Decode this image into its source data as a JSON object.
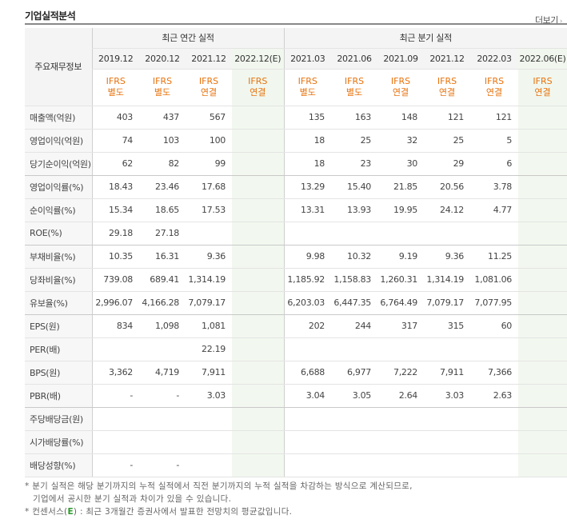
{
  "header": {
    "title": "기업실적분석",
    "more_label": "더보기"
  },
  "table": {
    "group_headers": {
      "annual": "최근 연간 실적",
      "quarterly": "최근 분기 실적"
    },
    "label_header": "주요재무정보",
    "annual_periods": [
      "2019.12",
      "2020.12",
      "2021.12",
      "2022.12(E)"
    ],
    "quarter_periods": [
      "2021.03",
      "2021.06",
      "2021.09",
      "2021.12",
      "2022.03",
      "2022.06(E)"
    ],
    "ifrs": [
      [
        "IFRS",
        "별도"
      ],
      [
        "IFRS",
        "별도"
      ],
      [
        "IFRS",
        "연결"
      ],
      [
        "IFRS",
        "연결"
      ],
      [
        "IFRS",
        "별도"
      ],
      [
        "IFRS",
        "별도"
      ],
      [
        "IFRS",
        "연결"
      ],
      [
        "IFRS",
        "연결"
      ],
      [
        "IFRS",
        "연결"
      ],
      [
        "IFRS",
        "연결"
      ]
    ],
    "rows": [
      {
        "label": "매출액(억원)",
        "values": [
          "403",
          "437",
          "567",
          "",
          "135",
          "163",
          "148",
          "121",
          "121",
          ""
        ]
      },
      {
        "label": "영업이익(억원)",
        "values": [
          "74",
          "103",
          "100",
          "",
          "18",
          "25",
          "32",
          "25",
          "5",
          ""
        ]
      },
      {
        "label": "당기순이익(억원)",
        "values": [
          "62",
          "82",
          "99",
          "",
          "18",
          "23",
          "30",
          "29",
          "6",
          ""
        ]
      },
      {
        "label": "영업이익률(%)",
        "values": [
          "18.43",
          "23.46",
          "17.68",
          "",
          "13.29",
          "15.40",
          "21.85",
          "20.56",
          "3.78",
          ""
        ]
      },
      {
        "label": "순이익률(%)",
        "values": [
          "15.34",
          "18.65",
          "17.53",
          "",
          "13.31",
          "13.93",
          "19.95",
          "24.12",
          "4.77",
          ""
        ]
      },
      {
        "label": "ROE(%)",
        "values": [
          "29.18",
          "27.18",
          "",
          "",
          "",
          "",
          "",
          "",
          "",
          ""
        ]
      },
      {
        "label": "부채비율(%)",
        "values": [
          "10.35",
          "16.31",
          "9.36",
          "",
          "9.98",
          "10.32",
          "9.19",
          "9.36",
          "11.25",
          ""
        ]
      },
      {
        "label": "당좌비율(%)",
        "values": [
          "739.08",
          "689.41",
          "1,314.19",
          "",
          "1,185.92",
          "1,158.83",
          "1,260.31",
          "1,314.19",
          "1,081.06",
          ""
        ]
      },
      {
        "label": "유보율(%)",
        "values": [
          "2,996.07",
          "4,166.28",
          "7,079.17",
          "",
          "6,203.03",
          "6,447.35",
          "6,764.49",
          "7,079.17",
          "7,077.95",
          ""
        ]
      },
      {
        "label": "EPS(원)",
        "values": [
          "834",
          "1,098",
          "1,081",
          "",
          "202",
          "244",
          "317",
          "315",
          "60",
          ""
        ]
      },
      {
        "label": "PER(배)",
        "values": [
          "",
          "",
          "22.19",
          "",
          "",
          "",
          "",
          "",
          "",
          ""
        ]
      },
      {
        "label": "BPS(원)",
        "values": [
          "3,362",
          "4,719",
          "7,911",
          "",
          "6,688",
          "6,977",
          "7,222",
          "7,911",
          "7,366",
          ""
        ]
      },
      {
        "label": "PBR(배)",
        "values": [
          "-",
          "-",
          "3.03",
          "",
          "3.04",
          "3.05",
          "2.64",
          "3.03",
          "2.63",
          ""
        ]
      },
      {
        "label": "주당배당금(원)",
        "values": [
          "",
          "",
          "",
          "",
          "",
          "",
          "",
          "",
          "",
          ""
        ]
      },
      {
        "label": "시가배당률(%)",
        "values": [
          "",
          "",
          "",
          "",
          "",
          "",
          "",
          "",
          "",
          ""
        ]
      },
      {
        "label": "배당성향(%)",
        "values": [
          "-",
          "-",
          "",
          "",
          "",
          "",
          "",
          "",
          "",
          ""
        ]
      }
    ],
    "group_separators_after": [
      2,
      5,
      8,
      12
    ]
  },
  "notes": {
    "line1": "* 분기 실적은 해당 분기까지의 누적 실적에서 직전 분기까지의 누적 실적을 차감하는 방식으로 계산되므로,",
    "line2": "  기업에서 공시한 분기 실적과 차이가 있을 수 있습니다.",
    "line3_prefix": "* 컨센서스(",
    "line3_mark": "E",
    "line3_suffix": ") : 최근 3개월간 증권사에서 발표한 전망치의 평균값입니다."
  },
  "colors": {
    "ifrs": "#e8720c",
    "estimate_bg": "#f2f8ef",
    "consensus_mark": "#2c9a2c"
  }
}
